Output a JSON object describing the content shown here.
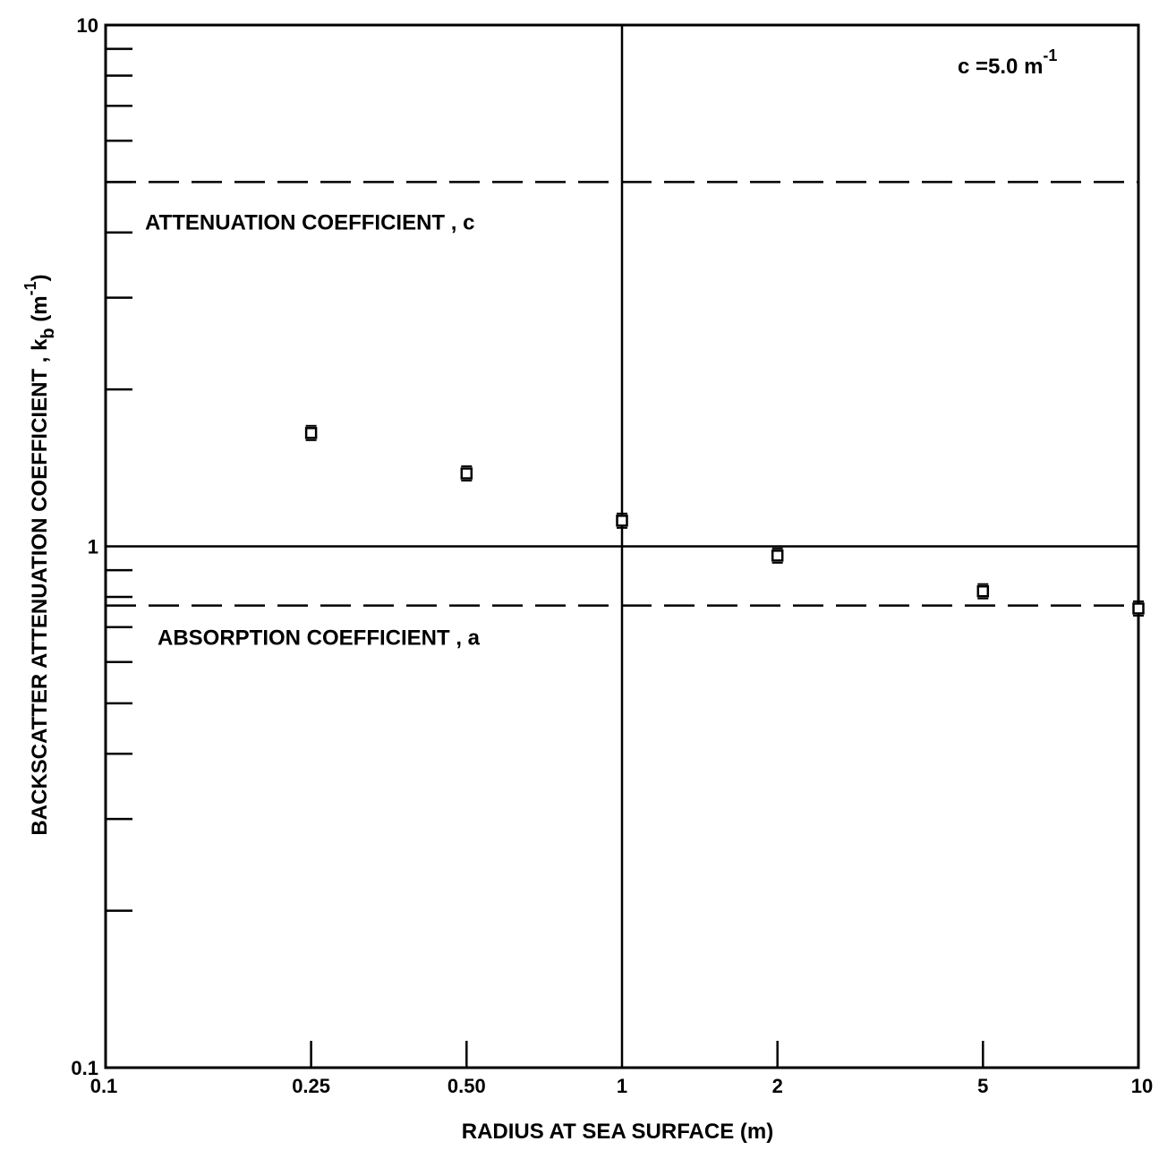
{
  "chart_data": {
    "type": "scatter",
    "xscale": "log",
    "yscale": "log",
    "xlim": [
      0.1,
      10
    ],
    "ylim": [
      0.1,
      10
    ],
    "xlabel": "RADIUS AT SEA SURFACE (m)",
    "ylabel_main": "BACKSCATTER ATTENUATION COEFFICIENT , k",
    "ylabel_sub": "b",
    "ylabel_unit_open": " (m",
    "ylabel_unit_exp": "-1",
    "ylabel_unit_close": ")",
    "x_tick_labels": [
      {
        "value": 0.1,
        "label": "0.1"
      },
      {
        "value": 0.25,
        "label": "0.25"
      },
      {
        "value": 0.5,
        "label": "0.50"
      },
      {
        "value": 1,
        "label": "1"
      },
      {
        "value": 2,
        "label": "2"
      },
      {
        "value": 5,
        "label": "5"
      },
      {
        "value": 10,
        "label": "10"
      }
    ],
    "y_tick_labels": [
      {
        "value": 10,
        "label": "10"
      },
      {
        "value": 1,
        "label": "1"
      },
      {
        "value": 0.1,
        "label": "0.1"
      }
    ],
    "y_minor_ticks": [
      0.2,
      0.3,
      0.4,
      0.5,
      0.6,
      0.7,
      0.8,
      0.9,
      2,
      3,
      4,
      5,
      6,
      7,
      8,
      9
    ],
    "x_minor_ticks": [
      0.25,
      0.5,
      2,
      5
    ],
    "points": [
      {
        "x": 0.25,
        "y": 1.65
      },
      {
        "x": 0.5,
        "y": 1.38
      },
      {
        "x": 1,
        "y": 1.12
      },
      {
        "x": 2,
        "y": 0.96
      },
      {
        "x": 5,
        "y": 0.82
      },
      {
        "x": 10,
        "y": 0.76
      }
    ],
    "reference_lines": [
      {
        "y": 5.0,
        "style": "dashed",
        "label": "ATTENUATION COEFFICIENT , c"
      },
      {
        "y": 0.77,
        "style": "dashed",
        "label": "ABSORPTION COEFFICIENT , a"
      }
    ],
    "annotation": {
      "main": "c  =5.0  m",
      "exp": "-1"
    },
    "grid": "major decades only",
    "colors": {
      "ink": "#000000",
      "background": "#ffffff"
    }
  }
}
